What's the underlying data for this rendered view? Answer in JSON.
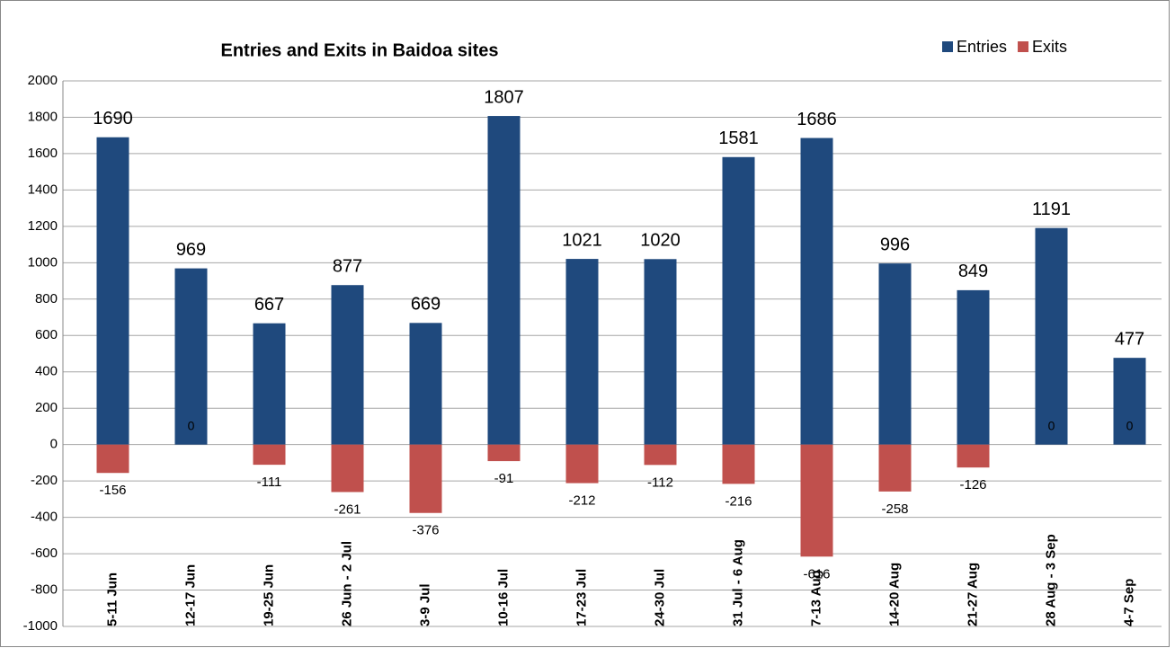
{
  "chart_data": {
    "type": "bar",
    "title": "Entries and Exits in Baidoa sites",
    "categories": [
      "5-11 Jun",
      "12-17 Jun",
      "19-25 Jun",
      "26 Jun - 2 Jul",
      "3-9 Jul",
      "10-16 Jul",
      "17-23 Jul",
      "24-30 Jul",
      "31 Jul - 6 Aug",
      "7-13 Aug",
      "14-20 Aug",
      "21-27 Aug",
      "28 Aug - 3 Sep",
      "4-7 Sep"
    ],
    "series": [
      {
        "name": "Entries",
        "color": "#1f497d",
        "values": [
          1690,
          969,
          667,
          877,
          669,
          1807,
          1021,
          1020,
          1581,
          1686,
          996,
          849,
          1191,
          477
        ]
      },
      {
        "name": "Exits",
        "color": "#c0504d",
        "values": [
          -156,
          0,
          -111,
          -261,
          -376,
          -91,
          -212,
          -112,
          -216,
          -616,
          -258,
          -126,
          0,
          0
        ]
      }
    ],
    "ylim": [
      -1000,
      2000
    ],
    "yticks": [
      -1000,
      -800,
      -600,
      -400,
      -200,
      0,
      200,
      400,
      600,
      800,
      1000,
      1200,
      1400,
      1600,
      1800,
      2000
    ],
    "grid": true,
    "legend": "top-right"
  }
}
